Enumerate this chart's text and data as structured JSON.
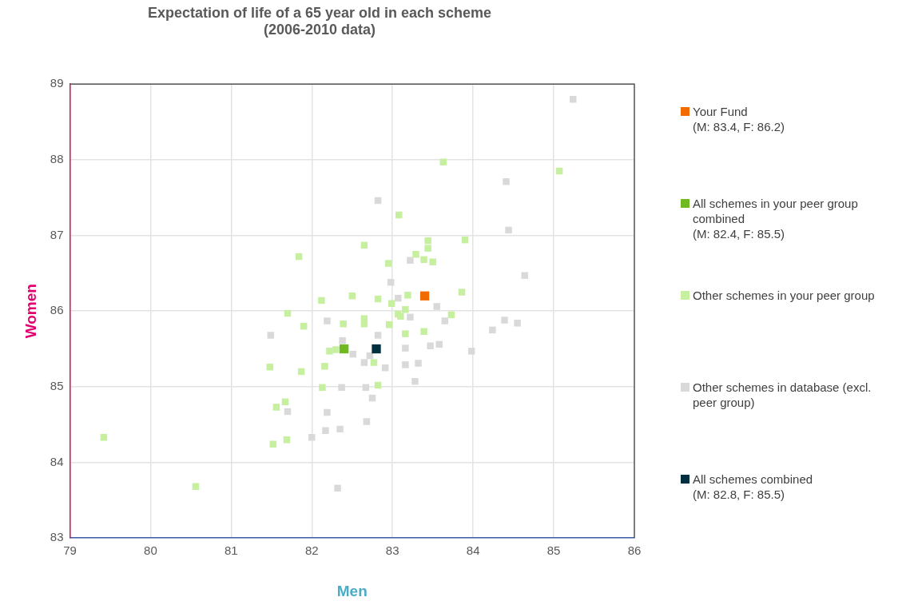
{
  "chart_data": {
    "type": "scatter",
    "title": "Expectation of life of a 65 year old in each scheme\n(2006-2010 data)",
    "xlabel": "Men",
    "ylabel": "Women",
    "xlim": [
      79,
      86
    ],
    "xticks": [
      79,
      80,
      81,
      82,
      83,
      84,
      85,
      86
    ],
    "ylim": [
      83,
      89
    ],
    "yticks": [
      83,
      84,
      85,
      86,
      87,
      88,
      89
    ],
    "grid": true,
    "legend": "right",
    "marker": "square",
    "series": [
      {
        "name": "Your Fund\n(M: 83.4, F: 86.2)",
        "color": "#f26b00",
        "x": [
          83.4
        ],
        "values": [
          86.2
        ]
      },
      {
        "name": "All schemes in your peer group combined\n(M: 82.4, F: 85.5)",
        "color": "#70b922",
        "x": [
          82.4
        ],
        "values": [
          85.5
        ]
      },
      {
        "name": "Other schemes in your peer group",
        "color": "#c6efa0",
        "x": [
          79.42,
          80.56,
          81.48,
          81.67,
          81.56,
          81.52,
          81.69,
          81.7,
          81.84,
          81.9,
          81.87,
          82.12,
          82.16,
          82.13,
          82.22,
          82.3,
          82.39,
          82.5,
          82.65,
          82.65,
          82.65,
          82.82,
          82.77,
          82.82,
          82.95,
          82.96,
          82.99,
          83.08,
          83.07,
          83.1,
          83.16,
          83.19,
          83.16,
          83.29,
          83.39,
          83.44,
          83.44,
          83.5,
          83.39,
          83.63,
          83.73,
          83.86,
          83.9,
          85.07
        ],
        "values": [
          84.33,
          83.68,
          85.26,
          84.8,
          84.73,
          84.24,
          84.3,
          85.97,
          86.72,
          85.8,
          85.2,
          86.14,
          85.27,
          84.99,
          85.47,
          85.49,
          85.83,
          86.2,
          86.87,
          85.9,
          85.83,
          86.16,
          85.32,
          85.02,
          86.63,
          85.82,
          86.1,
          87.27,
          85.96,
          85.93,
          86.02,
          86.21,
          85.7,
          86.75,
          86.68,
          86.93,
          86.83,
          86.65,
          85.73,
          87.97,
          85.95,
          86.25,
          86.94,
          87.85
        ]
      },
      {
        "name": "Other schemes in database (excl.\npeer group)",
        "color": "#d9d9d9",
        "x": [
          85.24,
          84.41,
          84.44,
          82.82,
          83.22,
          84.64,
          82.98,
          83.07,
          83.55,
          83.22,
          83.65,
          84.39,
          84.55,
          84.24,
          82.19,
          81.49,
          82.82,
          82.38,
          82.51,
          82.72,
          83.16,
          83.47,
          83.58,
          83.98,
          82.65,
          82.91,
          83.16,
          83.32,
          83.28,
          82.37,
          82.67,
          82.75,
          81.7,
          82.19,
          82.68,
          82.35,
          82.17,
          82.0,
          82.32
        ],
        "values": [
          88.8,
          87.71,
          87.07,
          87.46,
          86.67,
          86.47,
          86.38,
          86.17,
          86.06,
          85.92,
          85.87,
          85.88,
          85.84,
          85.75,
          85.87,
          85.68,
          85.68,
          85.61,
          85.43,
          85.41,
          85.51,
          85.54,
          85.56,
          85.47,
          85.32,
          85.25,
          85.29,
          85.31,
          85.07,
          84.99,
          84.99,
          84.85,
          84.67,
          84.66,
          84.54,
          84.44,
          84.42,
          84.33,
          83.66
        ]
      },
      {
        "name": "All schemes combined\n(M: 82.8, F: 85.5)",
        "color": "#003040",
        "x": [
          82.8
        ],
        "values": [
          85.5
        ]
      }
    ]
  }
}
